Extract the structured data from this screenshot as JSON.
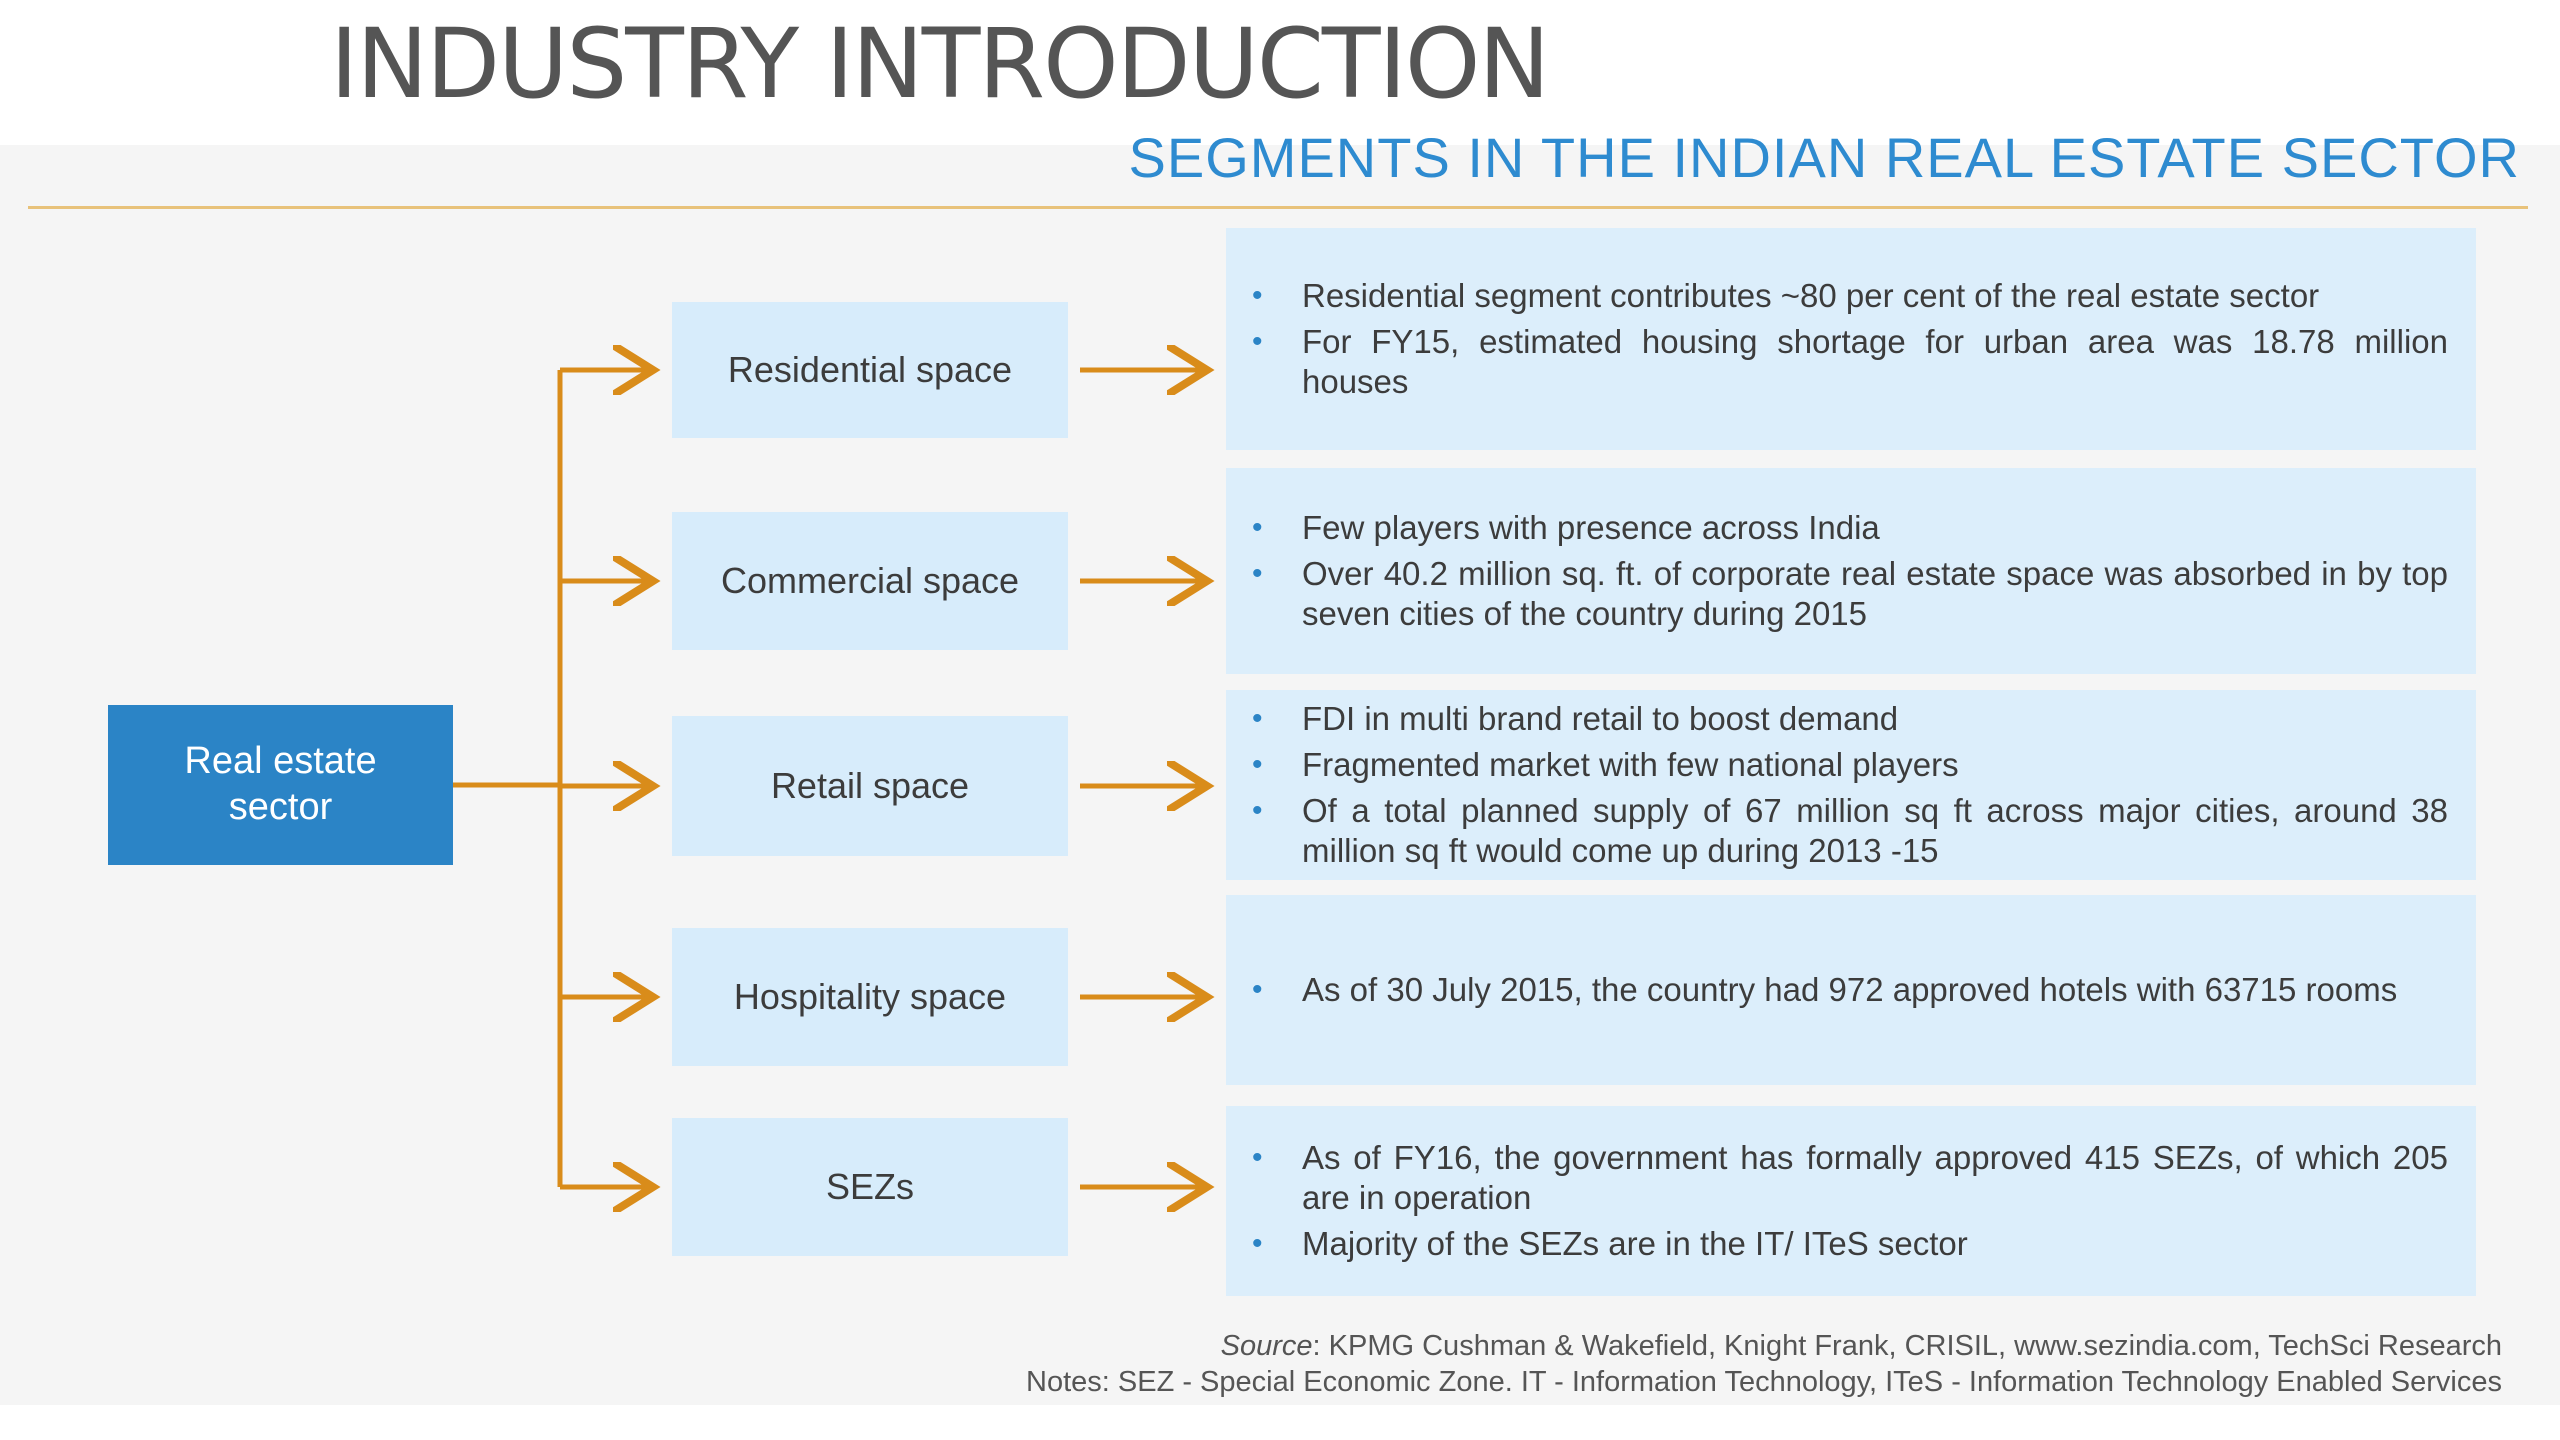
{
  "page_title": "INDUSTRY INTRODUCTION",
  "slide_heading": "SEGMENTS IN THE INDIAN REAL ESTATE SECTOR",
  "root": {
    "label": "Real estate sector"
  },
  "colors": {
    "root_fill": "#2b84c6",
    "segment_fill": "#d7ecfb",
    "detail_fill": "#dceefb",
    "connector": "#d98c1a",
    "heading": "#2e8bd0",
    "rule": "#e8c27a"
  },
  "segments": [
    {
      "label": "Residential space",
      "points": [
        "Residential segment contributes ~80 per cent of the real estate sector",
        "For FY15, estimated housing shortage for urban area was 18.78 million houses"
      ]
    },
    {
      "label": "Commercial space",
      "points": [
        "Few players with presence across India",
        "Over 40.2 million sq. ft. of corporate real estate space was absorbed in by top seven cities of the country during 2015"
      ]
    },
    {
      "label": "Retail space",
      "points": [
        "FDI in multi brand retail to boost demand",
        "Fragmented market with few national players",
        "Of a total planned supply of 67 million sq ft across major cities, around 38 million sq ft would come up during 2013 -15"
      ]
    },
    {
      "label": "Hospitality space",
      "points": [
        "As of 30 July 2015, the country had 972 approved hotels with 63715 rooms"
      ]
    },
    {
      "label": "SEZs",
      "points": [
        "As of FY16, the government has formally approved 415 SEZs, of which 205 are in operation",
        "Majority of the SEZs are in the IT/ ITeS sector"
      ]
    }
  ],
  "footer": {
    "source_label": "Source",
    "source_text": ": KPMG Cushman & Wakefield, Knight Frank, CRISIL, www.sezindia.com, TechSci Research",
    "notes": "Notes: SEZ - Special Economic Zone. IT - Information Technology, ITeS - Information Technology Enabled Services"
  }
}
